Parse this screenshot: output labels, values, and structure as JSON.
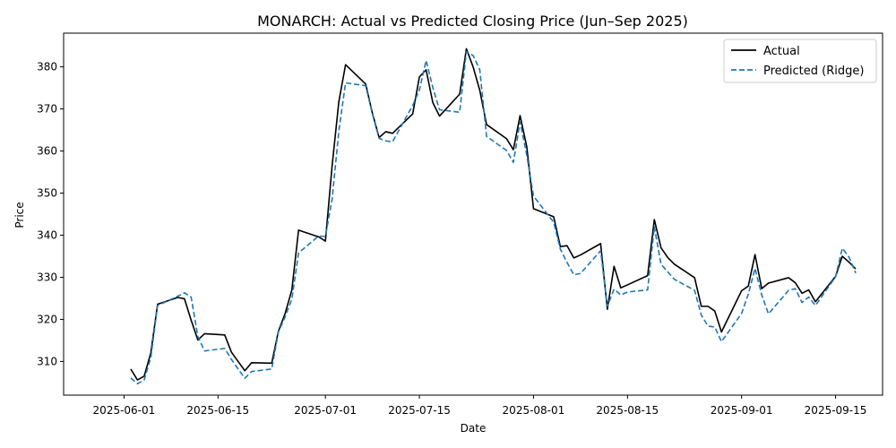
{
  "chart_data": {
    "type": "line",
    "title": "MONARCH: Actual vs Predicted Closing Price (Jun–Sep 2025)",
    "xlabel": "Date",
    "ylabel": "Price",
    "x_tick_labels": [
      "2025-06-01",
      "2025-06-15",
      "2025-07-01",
      "2025-07-15",
      "2025-08-01",
      "2025-08-15",
      "2025-09-01",
      "2025-09-15"
    ],
    "y_tick_labels": [
      "310",
      "320",
      "330",
      "340",
      "350",
      "360",
      "370",
      "380"
    ],
    "xlim": [
      "2025-05-23",
      "2025-09-22"
    ],
    "ylim": [
      302,
      388
    ],
    "grid": false,
    "legend_position": "top-right",
    "x": [
      "2025-06-02",
      "2025-06-03",
      "2025-06-04",
      "2025-06-05",
      "2025-06-06",
      "2025-06-09",
      "2025-06-10",
      "2025-06-11",
      "2025-06-12",
      "2025-06-13",
      "2025-06-16",
      "2025-06-17",
      "2025-06-18",
      "2025-06-19",
      "2025-06-20",
      "2025-06-23",
      "2025-06-24",
      "2025-06-25",
      "2025-06-26",
      "2025-06-27",
      "2025-06-30",
      "2025-07-01",
      "2025-07-02",
      "2025-07-03",
      "2025-07-04",
      "2025-07-07",
      "2025-07-08",
      "2025-07-09",
      "2025-07-10",
      "2025-07-11",
      "2025-07-14",
      "2025-07-15",
      "2025-07-16",
      "2025-07-17",
      "2025-07-18",
      "2025-07-21",
      "2025-07-22",
      "2025-07-23",
      "2025-07-24",
      "2025-07-25",
      "2025-07-28",
      "2025-07-29",
      "2025-07-30",
      "2025-07-31",
      "2025-08-01",
      "2025-08-04",
      "2025-08-05",
      "2025-08-06",
      "2025-08-07",
      "2025-08-08",
      "2025-08-11",
      "2025-08-12",
      "2025-08-13",
      "2025-08-14",
      "2025-08-15",
      "2025-08-18",
      "2025-08-19",
      "2025-08-20",
      "2025-08-21",
      "2025-08-22",
      "2025-08-25",
      "2025-08-26",
      "2025-08-27",
      "2025-08-28",
      "2025-08-29",
      "2025-09-01",
      "2025-09-02",
      "2025-09-03",
      "2025-09-04",
      "2025-09-05",
      "2025-09-08",
      "2025-09-09",
      "2025-09-10",
      "2025-09-11",
      "2025-09-12",
      "2025-09-15",
      "2025-09-16",
      "2025-09-17",
      "2025-09-18"
    ],
    "series": [
      {
        "name": "Actual",
        "color": "#000000",
        "dash": "solid",
        "values": [
          308.2,
          305.6,
          306.5,
          312.1,
          323.6,
          325.2,
          324.9,
          319.8,
          315.1,
          316.6,
          316.3,
          312.2,
          310.0,
          307.8,
          309.7,
          309.6,
          317.2,
          321.4,
          327.0,
          341.2,
          339.6,
          338.6,
          356.5,
          371.7,
          380.5,
          375.9,
          369.0,
          363.2,
          364.6,
          364.2,
          368.8,
          377.6,
          379.3,
          371.5,
          368.3,
          373.5,
          384.3,
          380.0,
          374.4,
          366.3,
          362.9,
          360.3,
          368.4,
          361.0,
          346.3,
          344.4,
          337.3,
          337.5,
          334.6,
          335.3,
          338.0,
          322.4,
          332.6,
          327.5,
          328.2,
          330.4,
          343.7,
          337.0,
          334.7,
          333.1,
          329.9,
          323.1,
          323.1,
          322.0,
          317.0,
          326.8,
          327.9,
          335.4,
          327.3,
          328.6,
          329.9,
          328.7,
          326.2,
          327.0,
          324.2,
          330.2,
          335.0,
          333.6,
          332.0
        ]
      },
      {
        "name": "Predicted (Ridge)",
        "color": "#1f77b4",
        "dash": "dashed",
        "values": [
          306.1,
          304.7,
          305.6,
          311.0,
          323.3,
          325.5,
          326.3,
          325.3,
          315.9,
          312.5,
          313.1,
          310.5,
          308.2,
          306.0,
          307.6,
          308.2,
          317.0,
          320.6,
          324.8,
          335.8,
          339.8,
          339.7,
          348.6,
          364.7,
          376.2,
          375.5,
          368.8,
          363.0,
          362.4,
          362.2,
          370.8,
          374.5,
          381.5,
          375.1,
          369.8,
          369.2,
          383.6,
          382.7,
          379.3,
          363.5,
          360.1,
          357.3,
          366.9,
          359.0,
          349.3,
          343.1,
          336.7,
          333.5,
          330.6,
          330.9,
          336.3,
          323.1,
          327.2,
          325.8,
          326.5,
          327.0,
          342.0,
          333.1,
          331.3,
          329.5,
          326.9,
          321.0,
          318.4,
          318.2,
          314.7,
          321.4,
          326.0,
          332.1,
          325.8,
          321.3,
          326.9,
          327.3,
          324.0,
          325.3,
          323.3,
          330.1,
          336.9,
          334.8,
          331.0
        ]
      }
    ]
  }
}
